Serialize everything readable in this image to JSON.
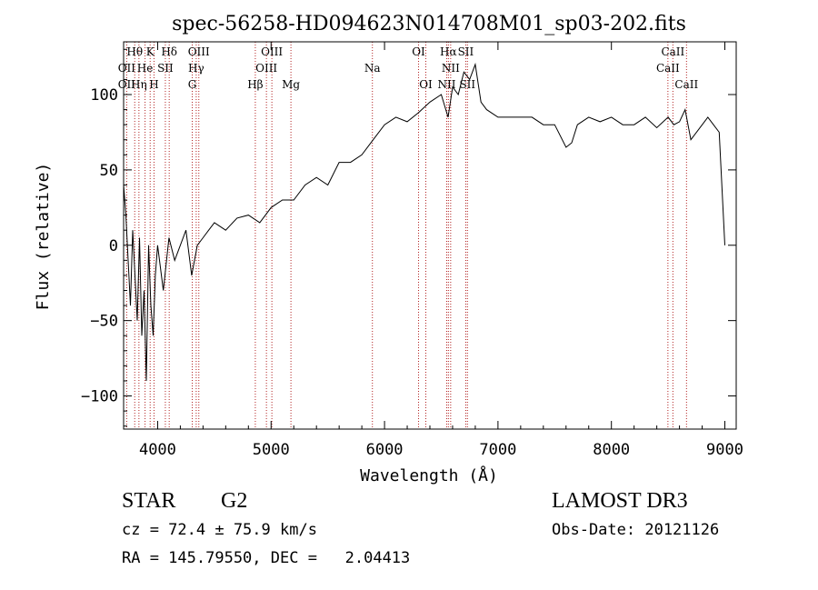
{
  "chart_data": {
    "type": "line",
    "title": "spec-56258-HD094623N014708M01_sp03-202.fits",
    "xlabel": "Wavelength (Å)",
    "ylabel": "Flux (relative)",
    "xlim": [
      3700,
      9100
    ],
    "ylim": [
      -122,
      135
    ],
    "x_ticks": [
      4000,
      5000,
      6000,
      7000,
      8000,
      9000
    ],
    "x_tick_labels": [
      "4000",
      "5000",
      "6000",
      "7000",
      "8000",
      "9000"
    ],
    "y_ticks": [
      -100,
      -50,
      0,
      50,
      100
    ],
    "y_tick_labels": [
      "−100",
      "−50",
      "0",
      "50",
      "100"
    ],
    "series": [
      {
        "x": [
          3700,
          3720,
          3740,
          3760,
          3780,
          3800,
          3820,
          3840,
          3860,
          3880,
          3900,
          3920,
          3940,
          3960,
          3980,
          4000,
          4050,
          4100,
          4150,
          4200,
          4250,
          4300,
          4350,
          4400,
          4450,
          4500,
          4600,
          4700,
          4800,
          4900,
          5000,
          5100,
          5200,
          5300,
          5400,
          5500,
          5600,
          5700,
          5800,
          5900,
          6000,
          6100,
          6200,
          6300,
          6400,
          6500,
          6560,
          6600,
          6650,
          6700,
          6750,
          6800,
          6850,
          6900,
          7000,
          7100,
          7200,
          7300,
          7400,
          7500,
          7600,
          7650,
          7700,
          7800,
          7900,
          8000,
          8100,
          8200,
          8300,
          8400,
          8500,
          8550,
          8600,
          8650,
          8700,
          8800,
          8850,
          8900,
          8950,
          9000
        ],
        "y": [
          40,
          20,
          -10,
          -40,
          10,
          -20,
          -50,
          5,
          -60,
          -30,
          -90,
          0,
          -40,
          -60,
          -20,
          0,
          -30,
          5,
          -10,
          0,
          10,
          -20,
          0,
          5,
          10,
          15,
          10,
          18,
          20,
          15,
          25,
          30,
          30,
          40,
          45,
          40,
          55,
          55,
          60,
          70,
          80,
          85,
          82,
          88,
          95,
          100,
          85,
          105,
          100,
          115,
          110,
          120,
          95,
          90,
          85,
          85,
          85,
          85,
          80,
          80,
          65,
          68,
          80,
          85,
          82,
          85,
          80,
          80,
          85,
          78,
          85,
          80,
          82,
          90,
          70,
          80,
          85,
          80,
          75,
          0
        ],
        "color": "#000000"
      }
    ],
    "line_color": "#b22222",
    "line_labels": [
      {
        "text": "Hθ",
        "x": 3798,
        "row": 0
      },
      {
        "text": "OII",
        "x": 3727,
        "row": 1
      },
      {
        "text": "OII",
        "x": 3727,
        "row": 2
      },
      {
        "text": "K",
        "x": 3934,
        "row": 0
      },
      {
        "text": "He",
        "x": 3889,
        "row": 1
      },
      {
        "text": "Hη",
        "x": 3835,
        "row": 2
      },
      {
        "text": "Hδ",
        "x": 4102,
        "row": 0
      },
      {
        "text": "SII",
        "x": 4068,
        "row": 1
      },
      {
        "text": "H",
        "x": 3968,
        "row": 2
      },
      {
        "text": "OIII",
        "x": 4363,
        "row": 0
      },
      {
        "text": "Hγ",
        "x": 4340,
        "row": 1
      },
      {
        "text": "G",
        "x": 4305,
        "row": 2
      },
      {
        "text": "OIII",
        "x": 5007,
        "row": 0
      },
      {
        "text": "OIII",
        "x": 4959,
        "row": 1
      },
      {
        "text": "Hβ",
        "x": 4861,
        "row": 2
      },
      {
        "text": "Mg",
        "x": 5175,
        "row": 2
      },
      {
        "text": "Na",
        "x": 5893,
        "row": 1
      },
      {
        "text": "OI",
        "x": 6300,
        "row": 0
      },
      {
        "text": "OI",
        "x": 6364,
        "row": 2
      },
      {
        "text": "Hα",
        "x": 6563,
        "row": 0
      },
      {
        "text": "SII",
        "x": 6716,
        "row": 0
      },
      {
        "text": "NII",
        "x": 6583,
        "row": 1
      },
      {
        "text": "NII",
        "x": 6548,
        "row": 2
      },
      {
        "text": "SII",
        "x": 6731,
        "row": 2
      },
      {
        "text": "CaII",
        "x": 8542,
        "row": 0
      },
      {
        "text": "CaII",
        "x": 8498,
        "row": 1
      },
      {
        "text": "CaII",
        "x": 8662,
        "row": 2
      }
    ],
    "line_positions": [
      3727,
      3798,
      3835,
      3889,
      3934,
      3968,
      4068,
      4102,
      4305,
      4340,
      4363,
      4861,
      4959,
      5007,
      5175,
      5893,
      6300,
      6364,
      6548,
      6563,
      6583,
      6716,
      6731,
      8498,
      8542,
      8662
    ]
  },
  "info": {
    "object_class": "STAR",
    "subclass": "G2",
    "survey": "LAMOST DR3",
    "redshift": "cz = 72.4 ± 75.9 km/s",
    "obs_date": "Obs-Date: 20121126",
    "coords": "RA = 145.79550, DEC =   2.04413"
  }
}
